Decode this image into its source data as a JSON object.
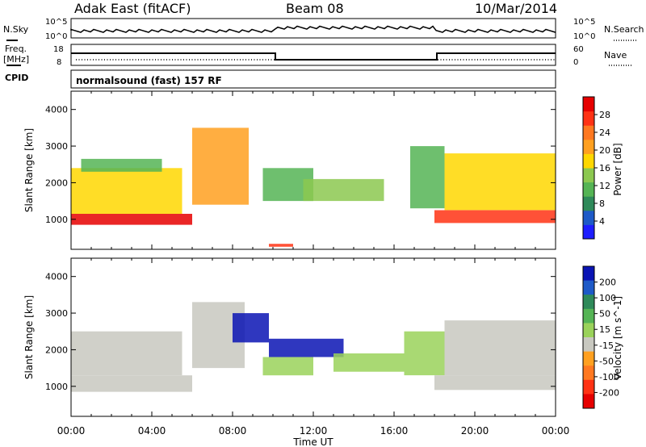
{
  "header": {
    "station": "Adak East (fitACF)",
    "beam": "Beam 08",
    "date": "10/Mar/2014"
  },
  "strip_labels": {
    "nsky": "N.Sky",
    "nsky_top": "10^5",
    "nsky_bottom": "10^0",
    "freq": "Freq.",
    "freq_unit": "[MHz]",
    "freq_top": "18",
    "freq_bottom": "8",
    "cpid": "CPID",
    "cpid_text": "normalsound (fast) 157 RF",
    "nsearch": "N.Search",
    "nsearch_top": "10^5",
    "nsearch_bottom": "10^0",
    "nave": "Nave",
    "nave_top": "60",
    "nave_bottom": "0"
  },
  "x_axis": {
    "label": "Time UT",
    "ticks": [
      "00:00",
      "04:00",
      "08:00",
      "12:00",
      "16:00",
      "20:00",
      "00:00"
    ]
  },
  "colors": {
    "power": [
      "#1e1eff",
      "#1e5ac8",
      "#2f8a5a",
      "#55b455",
      "#8cc850",
      "#ffd700",
      "#ffa020",
      "#ff7820",
      "#ff3214",
      "#e60000"
    ],
    "velocity": [
      "#0a14b4",
      "#1e5ac8",
      "#2f8a5a",
      "#55b455",
      "#9ad25a",
      "#c8c8c0",
      "#ffa020",
      "#ff7820",
      "#ff3214",
      "#e60000"
    ]
  },
  "chart_data": [
    {
      "type": "heatmap",
      "title": "Power",
      "ylabel": "Slant Range [km]",
      "xlabel": "",
      "x_range_hours": [
        0,
        24
      ],
      "ylim": [
        180,
        4500
      ],
      "yticks": [
        1000,
        2000,
        3000,
        4000
      ],
      "colorbar": {
        "label": "Power [dB]",
        "range": [
          0,
          32
        ],
        "ticks": [
          4,
          8,
          12,
          16,
          20,
          24,
          28
        ]
      },
      "regions": [
        {
          "t0": 0.0,
          "t1": 6.0,
          "r0": 850,
          "r1": 1150,
          "value": 30
        },
        {
          "t0": 0.0,
          "t1": 5.5,
          "r0": 1150,
          "r1": 2400,
          "value": 18
        },
        {
          "t0": 0.5,
          "t1": 4.5,
          "r0": 2300,
          "r1": 2650,
          "value": 10
        },
        {
          "t0": 6.0,
          "t1": 8.8,
          "r0": 1400,
          "r1": 3500,
          "value": 20
        },
        {
          "t0": 9.5,
          "t1": 12.0,
          "r0": 1500,
          "r1": 2400,
          "value": 10
        },
        {
          "t0": 11.5,
          "t1": 15.5,
          "r0": 1500,
          "r1": 2100,
          "value": 14
        },
        {
          "t0": 9.8,
          "t1": 11.0,
          "r0": 250,
          "r1": 330,
          "value": 26
        },
        {
          "t0": 16.8,
          "t1": 18.5,
          "r0": 1300,
          "r1": 3000,
          "value": 10
        },
        {
          "t0": 18.0,
          "t1": 24.0,
          "r0": 900,
          "r1": 1250,
          "value": 28
        },
        {
          "t0": 18.5,
          "t1": 24.0,
          "r0": 1250,
          "r1": 2800,
          "value": 18
        }
      ]
    },
    {
      "type": "heatmap",
      "title": "Velocity",
      "ylabel": "Slant Range [km]",
      "xlabel": "Time UT",
      "x_range_hours": [
        0,
        24
      ],
      "ylim": [
        180,
        4500
      ],
      "yticks": [
        1000,
        2000,
        3000,
        4000
      ],
      "colorbar": {
        "label": "Velocity [m s^-1]",
        "ticks": [
          200,
          100,
          50,
          15,
          -15,
          -50,
          -100,
          -200
        ]
      },
      "regions": [
        {
          "t0": 0.0,
          "t1": 6.0,
          "r0": 850,
          "r1": 1300,
          "value": 0
        },
        {
          "t0": 0.0,
          "t1": 5.5,
          "r0": 1300,
          "r1": 2500,
          "value": 0
        },
        {
          "t0": 6.0,
          "t1": 8.6,
          "r0": 1500,
          "r1": 3300,
          "value": 0
        },
        {
          "t0": 8.0,
          "t1": 9.8,
          "r0": 2200,
          "r1": 3000,
          "value": 220
        },
        {
          "t0": 9.8,
          "t1": 13.5,
          "r0": 1800,
          "r1": 2300,
          "value": 220
        },
        {
          "t0": 9.5,
          "t1": 12.0,
          "r0": 1300,
          "r1": 1800,
          "value": 40
        },
        {
          "t0": 13.0,
          "t1": 16.5,
          "r0": 1400,
          "r1": 1900,
          "value": 40
        },
        {
          "t0": 16.5,
          "t1": 18.5,
          "r0": 1300,
          "r1": 2500,
          "value": 40
        },
        {
          "t0": 18.0,
          "t1": 24.0,
          "r0": 900,
          "r1": 1300,
          "value": 0
        },
        {
          "t0": 18.5,
          "t1": 24.0,
          "r0": 1300,
          "r1": 2800,
          "value": 0
        }
      ]
    }
  ]
}
